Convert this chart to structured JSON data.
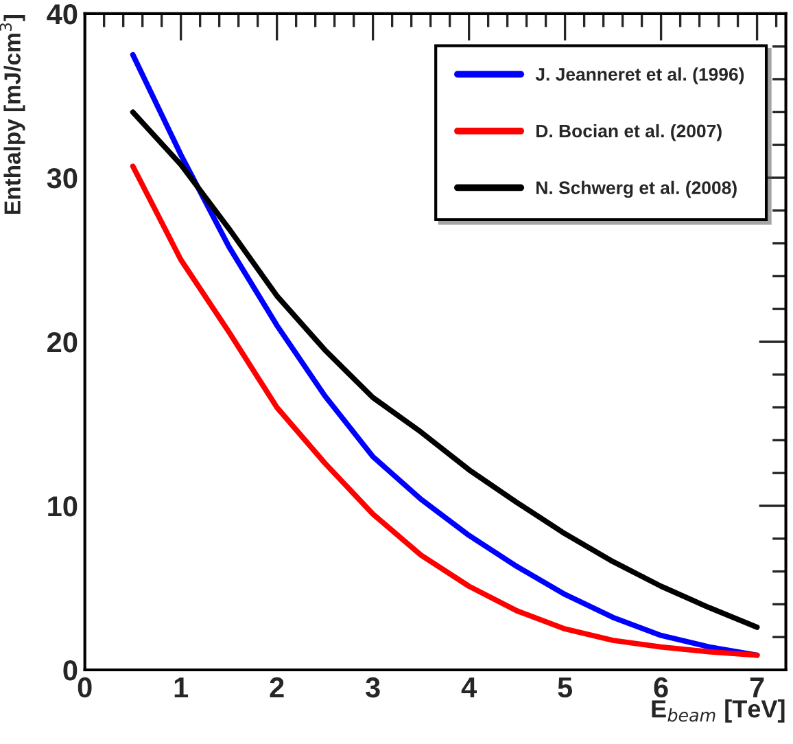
{
  "chart_data": {
    "type": "line",
    "xlabel": "E$_{beam}$ [TeV]",
    "ylabel": "Enthalpy [mJ/cm$^{3}$]",
    "x": [
      0.5,
      1,
      1.5,
      2,
      2.5,
      3,
      3.5,
      4,
      4.5,
      5,
      5.5,
      6,
      6.5,
      7
    ],
    "series": [
      {
        "name": "J. Jeanneret et al. (1996)",
        "color": "#0000ff",
        "values": [
          37.5,
          31.4,
          25.8,
          21.0,
          16.7,
          13.0,
          10.4,
          8.2,
          6.3,
          4.6,
          3.2,
          2.1,
          1.4,
          0.9
        ]
      },
      {
        "name": "D. Bocian et al. (2007)",
        "color": "#ff0000",
        "values": [
          30.7,
          25.0,
          20.6,
          16.0,
          12.6,
          9.5,
          7.0,
          5.1,
          3.6,
          2.5,
          1.8,
          1.4,
          1.1,
          0.9
        ]
      },
      {
        "name": "N. Schwerg et al. (2008)",
        "color": "#000000",
        "values": [
          34.0,
          30.8,
          26.9,
          22.8,
          19.5,
          16.6,
          14.5,
          12.2,
          10.2,
          8.3,
          6.6,
          5.1,
          3.8,
          2.6
        ]
      }
    ],
    "xlim": [
      0,
      7.3
    ],
    "xticks": [
      0,
      1,
      2,
      3,
      4,
      5,
      6,
      7
    ],
    "ylim": [
      0,
      40
    ],
    "yticks": [
      0,
      10,
      20,
      30,
      40
    ],
    "grid": false,
    "legend": "top right",
    "marker": "none",
    "line_style": "solid"
  }
}
